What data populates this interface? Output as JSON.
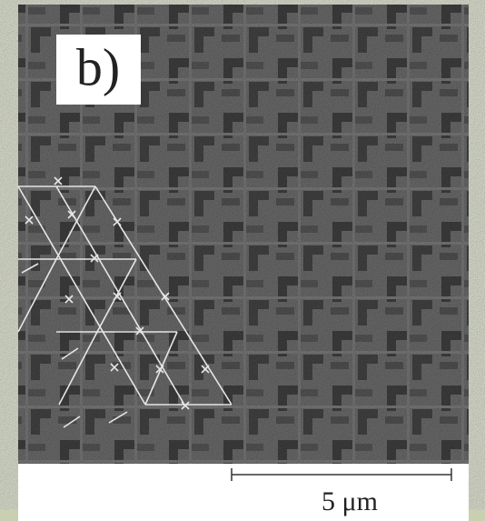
{
  "panel": {
    "label": "b)"
  },
  "scale_bar": {
    "label": "5 μm"
  }
}
